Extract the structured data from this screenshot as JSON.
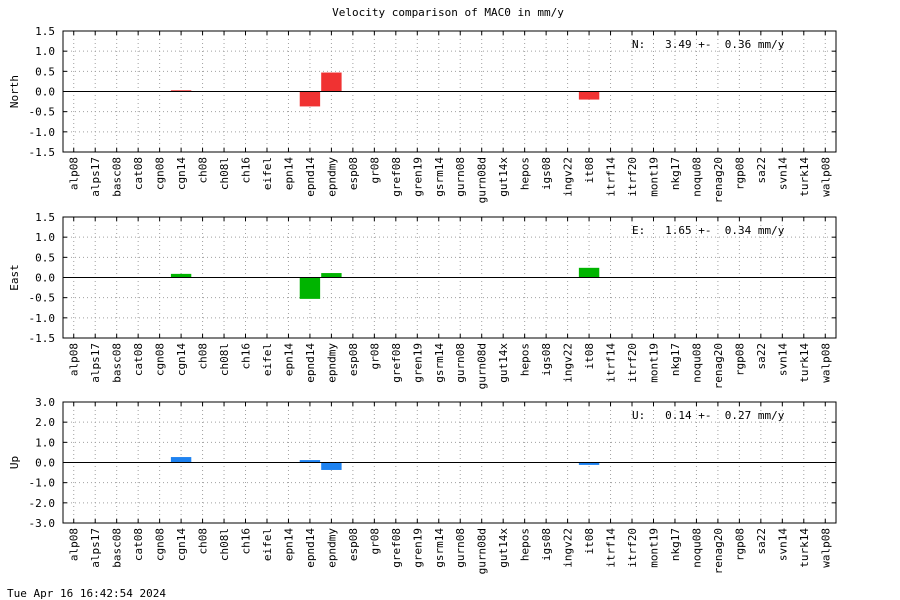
{
  "title": "Velocity comparison of MAC0 in mm/y",
  "footer": "Tue Apr 16 16:42:54 2024",
  "chart_data": [
    {
      "type": "bar",
      "ylabel": "North",
      "color": "#f03232",
      "ylim": [
        -1.5,
        1.5
      ],
      "yticks": [
        "1.5",
        "1.0",
        "0.5",
        "0.0",
        "-0.5",
        "-1.0",
        "-1.5"
      ],
      "annotation": "N:   3.49 +-  0.36 mm/y",
      "categories": [
        "alp08",
        "alps17",
        "basc08",
        "cat08",
        "cgn08",
        "cgn14",
        "ch08",
        "ch08l",
        "ch16",
        "eifel",
        "epn14",
        "epnd14",
        "epndmy",
        "esp08",
        "gr08",
        "gref08",
        "gren19",
        "gsrm14",
        "gurn08",
        "gurn08d",
        "gut14x",
        "hepos",
        "igs08",
        "ingv22",
        "it08",
        "itrf14",
        "itrf20",
        "mont19",
        "nkg17",
        "noqu08",
        "renag20",
        "rgp08",
        "sa22",
        "svn14",
        "turk14",
        "walp08"
      ],
      "values": [
        null,
        null,
        null,
        null,
        null,
        0.03,
        null,
        null,
        null,
        null,
        null,
        -0.37,
        0.47,
        null,
        null,
        null,
        null,
        null,
        null,
        null,
        null,
        null,
        null,
        null,
        -0.2,
        null,
        null,
        null,
        null,
        null,
        null,
        null,
        null,
        null,
        null,
        null
      ]
    },
    {
      "type": "bar",
      "ylabel": "East",
      "color": "#00b400",
      "ylim": [
        -1.5,
        1.5
      ],
      "yticks": [
        "1.5",
        "1.0",
        "0.5",
        "0.0",
        "-0.5",
        "-1.0",
        "-1.5"
      ],
      "annotation": "E:   1.65 +-  0.34 mm/y",
      "categories": [
        "alp08",
        "alps17",
        "basc08",
        "cat08",
        "cgn08",
        "cgn14",
        "ch08",
        "ch08l",
        "ch16",
        "eifel",
        "epn14",
        "epnd14",
        "epndmy",
        "esp08",
        "gr08",
        "gref08",
        "gren19",
        "gsrm14",
        "gurn08",
        "gurn08d",
        "gut14x",
        "hepos",
        "igs08",
        "ingv22",
        "it08",
        "itrf14",
        "itrf20",
        "mont19",
        "nkg17",
        "noqu08",
        "renag20",
        "rgp08",
        "sa22",
        "svn14",
        "turk14",
        "walp08"
      ],
      "values": [
        null,
        null,
        null,
        null,
        null,
        0.09,
        null,
        null,
        null,
        null,
        null,
        -0.53,
        0.11,
        null,
        null,
        null,
        null,
        null,
        null,
        null,
        null,
        null,
        null,
        null,
        0.24,
        null,
        null,
        null,
        null,
        null,
        null,
        null,
        null,
        null,
        null,
        null
      ]
    },
    {
      "type": "bar",
      "ylabel": "Up",
      "color": "#1e82f0",
      "ylim": [
        -3.0,
        3.0
      ],
      "yticks": [
        "3.0",
        "2.0",
        "1.0",
        "0.0",
        "-1.0",
        "-2.0",
        "-3.0"
      ],
      "annotation": "U:   0.14 +-  0.27 mm/y",
      "categories": [
        "alp08",
        "alps17",
        "basc08",
        "cat08",
        "cgn08",
        "cgn14",
        "ch08",
        "ch08l",
        "ch16",
        "eifel",
        "epn14",
        "epnd14",
        "epndmy",
        "esp08",
        "gr08",
        "gref08",
        "gren19",
        "gsrm14",
        "gurn08",
        "gurn08d",
        "gut14x",
        "hepos",
        "igs08",
        "ingv22",
        "it08",
        "itrf14",
        "itrf20",
        "mont19",
        "nkg17",
        "noqu08",
        "renag20",
        "rgp08",
        "sa22",
        "svn14",
        "turk14",
        "walp08"
      ],
      "values": [
        null,
        null,
        null,
        null,
        null,
        0.27,
        null,
        null,
        null,
        null,
        null,
        0.12,
        -0.37,
        null,
        null,
        null,
        null,
        null,
        null,
        null,
        null,
        null,
        null,
        null,
        -0.12,
        null,
        null,
        null,
        null,
        null,
        null,
        null,
        null,
        null,
        null,
        null
      ]
    }
  ]
}
